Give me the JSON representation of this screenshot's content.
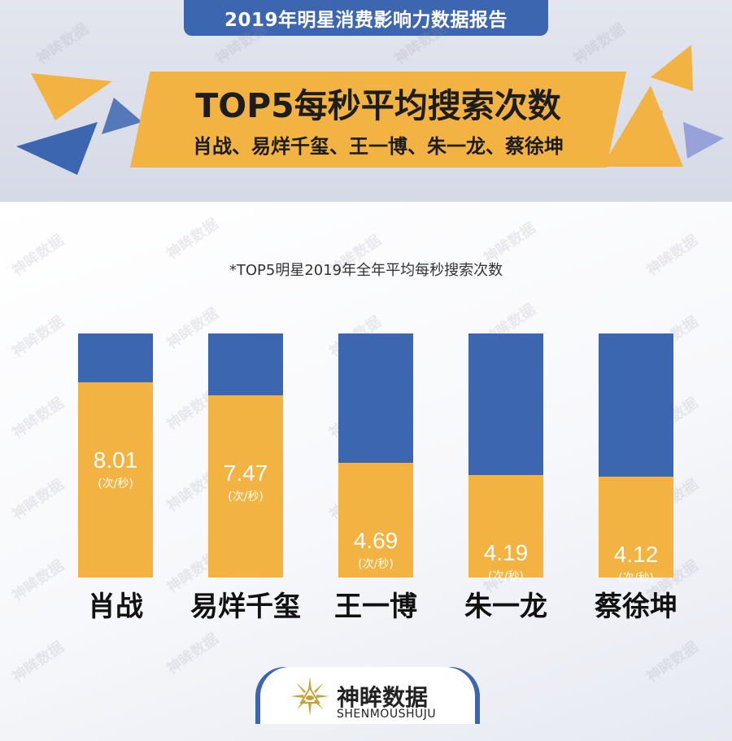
{
  "header": {
    "report_title": "2019年明星消费影响力数据报告",
    "banner_title": "TOP5每秒平均搜索次数",
    "banner_subtitle": "肖战、易烊千玺、王一博、朱一龙、蔡徐坤"
  },
  "chart_note": "*TOP5明星2019年全年平均每秒搜索次数",
  "watermark": "神眸数据",
  "chart_data": {
    "type": "bar",
    "title": "",
    "categories": [
      "肖战",
      "易烊千玺",
      "王一博",
      "朱一龙",
      "蔡徐坤"
    ],
    "values": [
      8.01,
      7.47,
      4.69,
      4.19,
      4.12
    ],
    "value_labels": [
      "8.01",
      "7.47",
      "4.69",
      "4.19",
      "4.12"
    ],
    "unit": "(次/秒)",
    "ylim": [
      0,
      10
    ],
    "grid": false,
    "colors": {
      "value": "#f3b342",
      "remainder": "#3d66b0"
    }
  },
  "footer": {
    "brand_name": "神眸数据",
    "brand_sub": "SHENMOUSHUJU"
  },
  "colors": {
    "accent_blue": "#3d66b0",
    "accent_orange": "#f3b342"
  }
}
